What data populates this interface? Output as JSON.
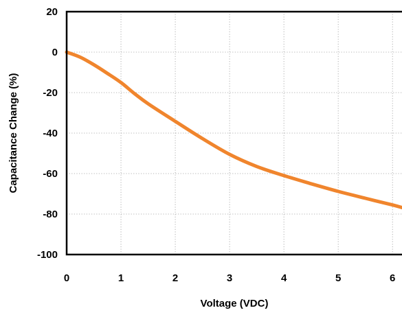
{
  "chart_data": {
    "type": "line",
    "title": "",
    "xlabel": "Voltage  (VDC)",
    "ylabel": "Capacitance Change (%)",
    "xlim": [
      0,
      6.2
    ],
    "ylim": [
      -100,
      20
    ],
    "x_ticks": [
      "0",
      "1",
      "2",
      "3",
      "4",
      "5",
      "6"
    ],
    "x_tick_values": [
      0,
      1,
      2,
      3,
      4,
      5,
      6
    ],
    "y_ticks": [
      "20",
      "0",
      "-20",
      "-40",
      "-60",
      "-80",
      "-100"
    ],
    "y_tick_values": [
      20,
      0,
      -20,
      -40,
      -60,
      -80,
      -100
    ],
    "grid": true,
    "series": [
      {
        "color": "#F0852D",
        "x": [
          0,
          0.25,
          0.5,
          0.75,
          1.0,
          1.25,
          1.5,
          2.0,
          2.5,
          3.0,
          3.5,
          4.0,
          4.5,
          5.0,
          5.5,
          6.0,
          6.2
        ],
        "y": [
          0,
          -2.5,
          -6.2,
          -10.5,
          -15,
          -20.5,
          -25.5,
          -34.2,
          -42.7,
          -50.5,
          -56.5,
          -61,
          -65,
          -68.8,
          -72.2,
          -75.5,
          -77
        ]
      }
    ]
  }
}
